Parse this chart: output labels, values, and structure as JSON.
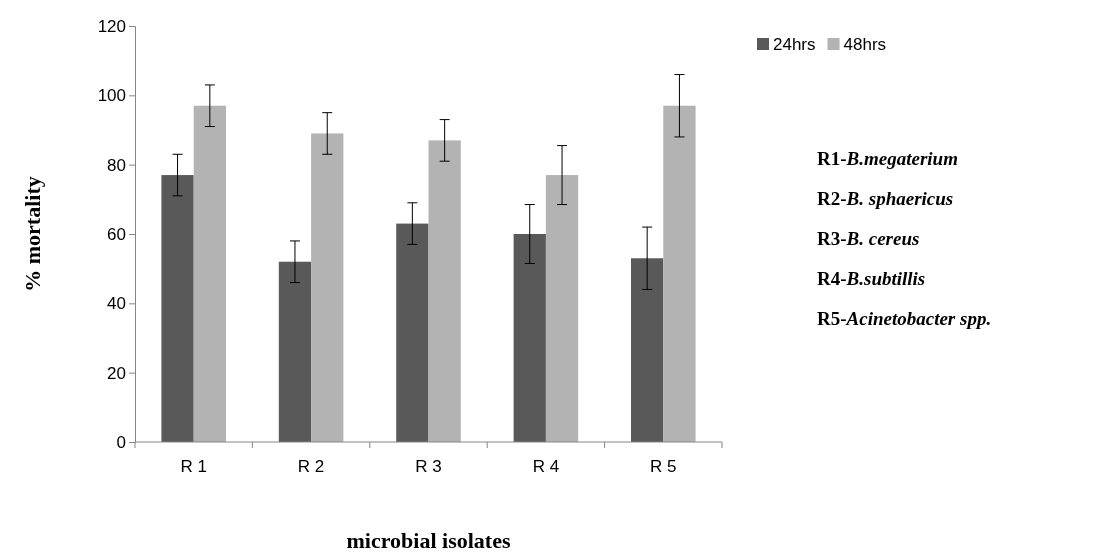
{
  "chart_data": {
    "type": "bar",
    "xlabel": "microbial isolates",
    "ylabel": "% mortality",
    "categories": [
      "R 1",
      "R 2",
      "R 3",
      "R 4",
      "R 5"
    ],
    "series": [
      {
        "name": "24hrs",
        "color": "#595959",
        "values": [
          77,
          52,
          63,
          60,
          53
        ],
        "errors": [
          6,
          6,
          6,
          8.5,
          9
        ]
      },
      {
        "name": "48hrs",
        "color": "#b3b3b3",
        "values": [
          97,
          89,
          87,
          77,
          97
        ],
        "errors": [
          6,
          6,
          6,
          8.5,
          9
        ]
      }
    ],
    "ylim": [
      0,
      120
    ],
    "yticks": [
      0,
      20,
      40,
      60,
      80,
      100,
      120
    ],
    "grid": false,
    "legend": "top right",
    "annotations": [
      "R1-B.megaterium",
      "R2-B. sphaericus",
      "R3-B. cereus",
      "R4-B.subtillis",
      "R5-Acinetobacter spp."
    ]
  }
}
